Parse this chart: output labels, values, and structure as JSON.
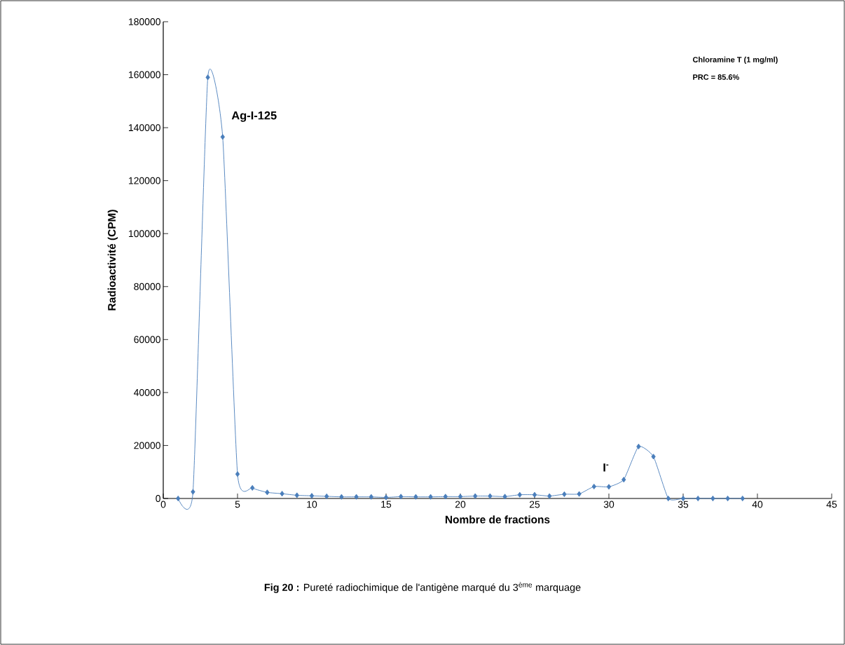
{
  "chart_data": {
    "type": "line",
    "xlabel": "Nombre de fractions",
    "ylabel": "Radioactivité (CPM)",
    "title": "**Fig  20 :** Pureté radiochimique de l'antigène marqué  du 3$^{ème}$ marquage",
    "x": [
      1,
      2,
      3,
      4,
      5,
      6,
      7,
      8,
      9,
      10,
      11,
      12,
      13,
      14,
      15,
      16,
      17,
      18,
      19,
      20,
      21,
      22,
      23,
      24,
      25,
      26,
      27,
      28,
      29,
      30,
      31,
      32,
      33,
      34,
      35,
      36,
      37,
      38,
      39
    ],
    "series": [
      {
        "color": "#4a7ebb",
        "values": [
          0,
          2500,
          159000,
          136500,
          9200,
          4000,
          2300,
          1800,
          1200,
          1000,
          800,
          600,
          600,
          600,
          400,
          700,
          600,
          600,
          700,
          700,
          900,
          900,
          700,
          1400,
          1400,
          900,
          1600,
          1700,
          4500,
          4400,
          7100,
          19600,
          15800,
          0,
          0,
          0,
          0,
          0,
          0
        ]
      }
    ],
    "xlim": [
      0,
      45
    ],
    "xticks": [
      0,
      5,
      10,
      15,
      20,
      25,
      30,
      35,
      40,
      45
    ],
    "ylim": [
      0,
      180000
    ],
    "yticks": [
      0,
      20000,
      40000,
      60000,
      80000,
      100000,
      120000,
      140000,
      160000,
      180000
    ],
    "marker": "diamond",
    "line_style": "solid",
    "annotations": [
      {
        "text": "Ag-I-125",
        "x": 4,
        "y": 136500
      },
      {
        "text": "I$^{-}$",
        "x": 29,
        "y": 4500
      },
      "Chloramine T (1 mg/ml)",
      "PRC = 85.6%"
    ]
  }
}
